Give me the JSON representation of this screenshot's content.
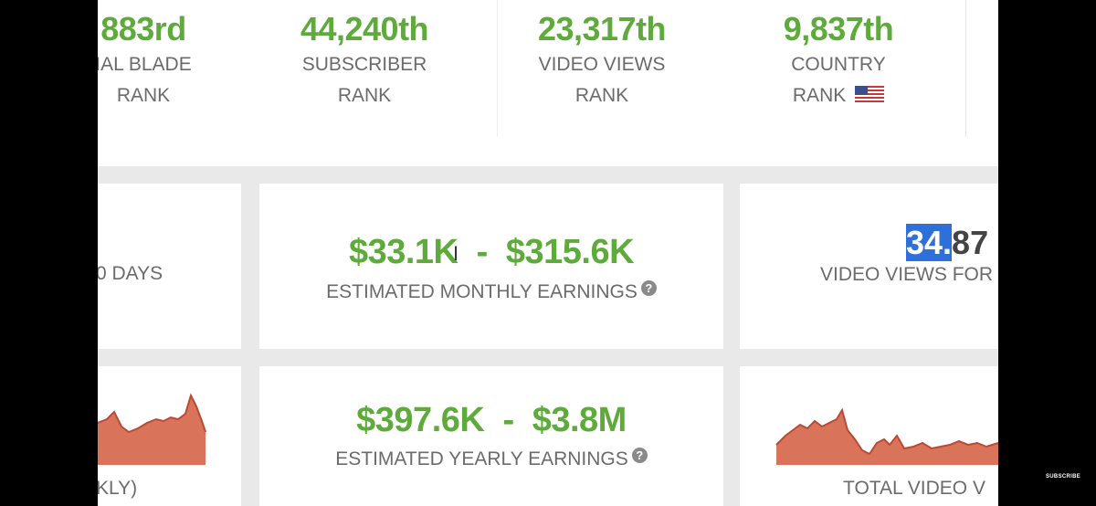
{
  "ranks": [
    {
      "value": "883rd",
      "line1": "IAL BLADE",
      "line2": "RANK"
    },
    {
      "value": "44,240th",
      "line1": "SUBSCRIBER",
      "line2": "RANK"
    },
    {
      "value": "23,317th",
      "line1": "VIDEO VIEWS",
      "line2": "RANK"
    },
    {
      "value": "9,837th",
      "line1": "COUNTRY",
      "line2": "RANK"
    }
  ],
  "left_card": {
    "label": "0 DAYS"
  },
  "monthly": {
    "value": "$33.1K  -  $315.6K",
    "label": "ESTIMATED MONTHLY EARNINGS",
    "help": "?"
  },
  "views_card": {
    "value_highlight": "34.",
    "value_rest": "87",
    "label": "VIDEO VIEWS FOR T"
  },
  "yearly": {
    "value": "$397.6K  -  $3.8M",
    "label": "ESTIMATED YEARLY EARNINGS",
    "help": "?"
  },
  "left_chart_card": {
    "label": "KLY)"
  },
  "right_chart_card": {
    "label": "TOTAL VIDEO V"
  },
  "overlay": {
    "subscribe": "SUBSCRIBE"
  },
  "icons": {
    "flag": "us-flag-icon",
    "help": "question-circle-icon",
    "cursor": "text-cursor-icon"
  },
  "colors": {
    "green": "#5eab3c",
    "chart_fill": "#d9735a",
    "chart_line": "#b94a35",
    "highlight": "#2f6fd8"
  }
}
